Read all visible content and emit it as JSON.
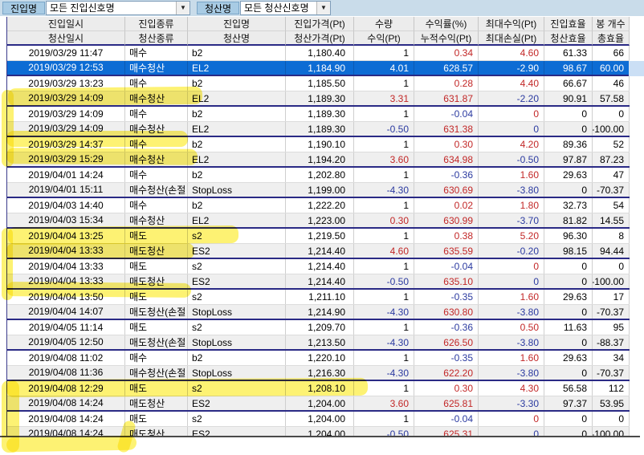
{
  "filters": {
    "entry_label": "진입명",
    "entry_value": "모든 진입신호명",
    "exit_label": "청산명",
    "exit_value": "모든 청산신호명",
    "dropdown_icon": "▼"
  },
  "header": {
    "row1": [
      "진입일시",
      "진입종류",
      "진입명",
      "진입가격(Pt)",
      "수량",
      "수익률(%)",
      "최대수익(Pt)",
      "진입효율",
      "봉 개수"
    ],
    "row2": [
      "청산일시",
      "청산종류",
      "청산명",
      "청산가격(Pt)",
      "수익(Pt)",
      "누적수익(Pt)",
      "최대손실(Pt)",
      "청산효율",
      "총효율"
    ]
  },
  "colors": {
    "positive": "#c22727",
    "negative": "#2b3aa0",
    "neutral": "#000000",
    "selected_row_bg": "#0d6cd4",
    "trade_separator": "#2a2a85",
    "highlighter": "#fce800"
  },
  "rows": [
    {
      "sel": false,
      "exit": false,
      "c": [
        "2019/03/29 11:47",
        "매수",
        "b2",
        "1,180.40",
        [
          "1",
          "k"
        ],
        [
          "0.34",
          "r"
        ],
        [
          "4.60",
          "r"
        ],
        [
          "61.33",
          "k"
        ],
        [
          "66",
          "k"
        ]
      ]
    },
    {
      "sel": true,
      "exit": true,
      "c": [
        "2019/03/29 12:53",
        "매수청산",
        "EL2",
        "1,184.90",
        [
          "4.01",
          "k"
        ],
        [
          "628.57",
          "k"
        ],
        [
          "-2.90",
          "k"
        ],
        [
          "98.67",
          "k"
        ],
        [
          "60.00",
          "k"
        ]
      ]
    },
    {
      "sel": false,
      "exit": false,
      "c": [
        "2019/03/29 13:23",
        "매수",
        "b2",
        "1,185.50",
        [
          "1",
          "k"
        ],
        [
          "0.28",
          "r"
        ],
        [
          "4.40",
          "r"
        ],
        [
          "66.67",
          "k"
        ],
        [
          "46",
          "k"
        ]
      ]
    },
    {
      "sel": false,
      "exit": true,
      "c": [
        "2019/03/29 14:09",
        "매수청산",
        "EL2",
        "1,189.30",
        [
          "3.31",
          "r"
        ],
        [
          "631.87",
          "r"
        ],
        [
          "-2.20",
          "b"
        ],
        [
          "90.91",
          "k"
        ],
        [
          "57.58",
          "k"
        ]
      ]
    },
    {
      "sel": false,
      "exit": false,
      "c": [
        "2019/03/29 14:09",
        "매수",
        "b2",
        "1,189.30",
        [
          "1",
          "k"
        ],
        [
          "-0.04",
          "b"
        ],
        [
          "0",
          "r"
        ],
        [
          "0",
          "k"
        ],
        [
          "0",
          "k"
        ]
      ]
    },
    {
      "sel": false,
      "exit": true,
      "c": [
        "2019/03/29 14:09",
        "매수청산",
        "EL2",
        "1,189.30",
        [
          "-0.50",
          "b"
        ],
        [
          "631.38",
          "r"
        ],
        [
          "0",
          "b"
        ],
        [
          "0",
          "k"
        ],
        [
          "-100.00",
          "k"
        ]
      ]
    },
    {
      "sel": false,
      "exit": false,
      "c": [
        "2019/03/29 14:37",
        "매수",
        "b2",
        "1,190.10",
        [
          "1",
          "k"
        ],
        [
          "0.30",
          "r"
        ],
        [
          "4.20",
          "r"
        ],
        [
          "89.36",
          "k"
        ],
        [
          "52",
          "k"
        ]
      ]
    },
    {
      "sel": false,
      "exit": true,
      "c": [
        "2019/03/29 15:29",
        "매수청산",
        "EL2",
        "1,194.20",
        [
          "3.60",
          "r"
        ],
        [
          "634.98",
          "r"
        ],
        [
          "-0.50",
          "b"
        ],
        [
          "97.87",
          "k"
        ],
        [
          "87.23",
          "k"
        ]
      ]
    },
    {
      "sel": false,
      "exit": false,
      "c": [
        "2019/04/01 14:24",
        "매수",
        "b2",
        "1,202.80",
        [
          "1",
          "k"
        ],
        [
          "-0.36",
          "b"
        ],
        [
          "1.60",
          "r"
        ],
        [
          "29.63",
          "k"
        ],
        [
          "47",
          "k"
        ]
      ]
    },
    {
      "sel": false,
      "exit": true,
      "c": [
        "2019/04/01 15:11",
        "매수청산(손절",
        "StopLoss",
        "1,199.00",
        [
          "-4.30",
          "b"
        ],
        [
          "630.69",
          "r"
        ],
        [
          "-3.80",
          "b"
        ],
        [
          "0",
          "k"
        ],
        [
          "-70.37",
          "k"
        ]
      ]
    },
    {
      "sel": false,
      "exit": false,
      "c": [
        "2019/04/03 14:40",
        "매수",
        "b2",
        "1,222.20",
        [
          "1",
          "k"
        ],
        [
          "0.02",
          "r"
        ],
        [
          "1.80",
          "r"
        ],
        [
          "32.73",
          "k"
        ],
        [
          "54",
          "k"
        ]
      ]
    },
    {
      "sel": false,
      "exit": true,
      "c": [
        "2019/04/03 15:34",
        "매수청산",
        "EL2",
        "1,223.00",
        [
          "0.30",
          "r"
        ],
        [
          "630.99",
          "r"
        ],
        [
          "-3.70",
          "b"
        ],
        [
          "81.82",
          "k"
        ],
        [
          "14.55",
          "k"
        ]
      ]
    },
    {
      "sel": false,
      "exit": false,
      "c": [
        "2019/04/04 13:25",
        "매도",
        "s2",
        "1,219.50",
        [
          "1",
          "k"
        ],
        [
          "0.38",
          "r"
        ],
        [
          "5.20",
          "r"
        ],
        [
          "96.30",
          "k"
        ],
        [
          "8",
          "k"
        ]
      ]
    },
    {
      "sel": false,
      "exit": true,
      "c": [
        "2019/04/04 13:33",
        "매도청산",
        "ES2",
        "1,214.40",
        [
          "4.60",
          "r"
        ],
        [
          "635.59",
          "r"
        ],
        [
          "-0.20",
          "b"
        ],
        [
          "98.15",
          "k"
        ],
        [
          "94.44",
          "k"
        ]
      ]
    },
    {
      "sel": false,
      "exit": false,
      "c": [
        "2019/04/04 13:33",
        "매도",
        "s2",
        "1,214.40",
        [
          "1",
          "k"
        ],
        [
          "-0.04",
          "b"
        ],
        [
          "0",
          "r"
        ],
        [
          "0",
          "k"
        ],
        [
          "0",
          "k"
        ]
      ]
    },
    {
      "sel": false,
      "exit": true,
      "c": [
        "2019/04/04 13:33",
        "매도청산",
        "ES2",
        "1,214.40",
        [
          "-0.50",
          "b"
        ],
        [
          "635.10",
          "r"
        ],
        [
          "0",
          "b"
        ],
        [
          "0",
          "k"
        ],
        [
          "-100.00",
          "k"
        ]
      ]
    },
    {
      "sel": false,
      "exit": false,
      "c": [
        "2019/04/04 13:50",
        "매도",
        "s2",
        "1,211.10",
        [
          "1",
          "k"
        ],
        [
          "-0.35",
          "b"
        ],
        [
          "1.60",
          "r"
        ],
        [
          "29.63",
          "k"
        ],
        [
          "17",
          "k"
        ]
      ]
    },
    {
      "sel": false,
      "exit": true,
      "c": [
        "2019/04/04 14:07",
        "매도청산(손절",
        "StopLoss",
        "1,214.90",
        [
          "-4.30",
          "b"
        ],
        [
          "630.80",
          "r"
        ],
        [
          "-3.80",
          "b"
        ],
        [
          "0",
          "k"
        ],
        [
          "-70.37",
          "k"
        ]
      ]
    },
    {
      "sel": false,
      "exit": false,
      "c": [
        "2019/04/05 11:14",
        "매도",
        "s2",
        "1,209.70",
        [
          "1",
          "k"
        ],
        [
          "-0.36",
          "b"
        ],
        [
          "0.50",
          "r"
        ],
        [
          "11.63",
          "k"
        ],
        [
          "95",
          "k"
        ]
      ]
    },
    {
      "sel": false,
      "exit": true,
      "c": [
        "2019/04/05 12:50",
        "매도청산(손절",
        "StopLoss",
        "1,213.50",
        [
          "-4.30",
          "b"
        ],
        [
          "626.50",
          "r"
        ],
        [
          "-3.80",
          "b"
        ],
        [
          "0",
          "k"
        ],
        [
          "-88.37",
          "k"
        ]
      ]
    },
    {
      "sel": false,
      "exit": false,
      "c": [
        "2019/04/08 11:02",
        "매수",
        "b2",
        "1,220.10",
        [
          "1",
          "k"
        ],
        [
          "-0.35",
          "b"
        ],
        [
          "1.60",
          "r"
        ],
        [
          "29.63",
          "k"
        ],
        [
          "34",
          "k"
        ]
      ]
    },
    {
      "sel": false,
      "exit": true,
      "c": [
        "2019/04/08 11:36",
        "매수청산(손절",
        "StopLoss",
        "1,216.30",
        [
          "-4.30",
          "b"
        ],
        [
          "622.20",
          "r"
        ],
        [
          "-3.80",
          "b"
        ],
        [
          "0",
          "k"
        ],
        [
          "-70.37",
          "k"
        ]
      ]
    },
    {
      "sel": false,
      "exit": false,
      "c": [
        "2019/04/08 12:29",
        "매도",
        "s2",
        "1,208.10",
        [
          "1",
          "k"
        ],
        [
          "0.30",
          "r"
        ],
        [
          "4.30",
          "r"
        ],
        [
          "56.58",
          "k"
        ],
        [
          "112",
          "k"
        ]
      ]
    },
    {
      "sel": false,
      "exit": true,
      "c": [
        "2019/04/08 14:24",
        "매도청산",
        "ES2",
        "1,204.00",
        [
          "3.60",
          "r"
        ],
        [
          "625.81",
          "r"
        ],
        [
          "-3.30",
          "b"
        ],
        [
          "97.37",
          "k"
        ],
        [
          "53.95",
          "k"
        ]
      ]
    },
    {
      "sel": false,
      "exit": false,
      "c": [
        "2019/04/08 14:24",
        "매도",
        "s2",
        "1,204.00",
        [
          "1",
          "k"
        ],
        [
          "-0.04",
          "b"
        ],
        [
          "0",
          "r"
        ],
        [
          "0",
          "k"
        ],
        [
          "0",
          "k"
        ]
      ]
    },
    {
      "sel": false,
      "exit": true,
      "c": [
        "2019/04/08 14:24",
        "매도청산",
        "ES2",
        "1,204.00",
        [
          "-0.50",
          "b"
        ],
        [
          "625.31",
          "r"
        ],
        [
          "0",
          "b"
        ],
        [
          "0",
          "k"
        ],
        [
          "-100.00",
          "k"
        ]
      ]
    }
  ]
}
